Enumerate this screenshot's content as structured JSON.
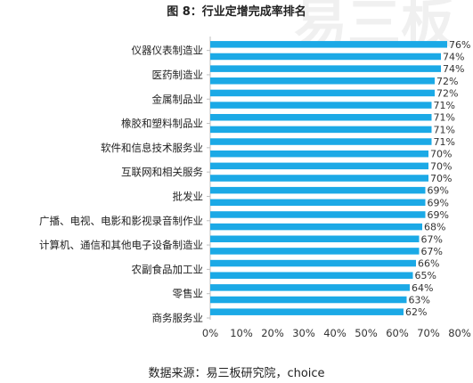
{
  "page": {
    "title": "图 8：行业定增完成率排名",
    "source": "数据来源：易三板研究院，choice"
  },
  "chart_data": {
    "type": "bar",
    "orientation": "horizontal",
    "title": "图 8：行业定增完成率排名",
    "y_tick_labels": [
      "仪器仪表制造业",
      "医药制造业",
      "金属制品业",
      "橡胶和塑料制品业",
      "软件和信息技术服务业",
      "互联网和相关服务",
      "批发业",
      "广播、电视、电影和影视录音制作业",
      "计算机、通信和其他电子设备制造业",
      "农副食品加工业",
      "零售业",
      "商务服务业"
    ],
    "values": [
      76,
      74,
      74,
      72,
      72,
      71,
      71,
      71,
      71,
      70,
      70,
      70,
      69,
      69,
      69,
      68,
      67,
      67,
      66,
      65,
      64,
      63,
      62
    ],
    "data_labels": [
      "76%",
      "74%",
      "74%",
      "72%",
      "72%",
      "71%",
      "71%",
      "71%",
      "71%",
      "70%",
      "70%",
      "70%",
      "69%",
      "69%",
      "69%",
      "68%",
      "67%",
      "67%",
      "66%",
      "65%",
      "64%",
      "63%",
      "62%"
    ],
    "xlim": [
      0,
      80
    ],
    "x_ticks": [
      "0%",
      "10%",
      "20%",
      "30%",
      "40%",
      "50%",
      "60%",
      "70%",
      "80%"
    ],
    "bar_color": "#1BA9E6",
    "grid": false,
    "legend": "none"
  },
  "watermark": {
    "text": "易三板"
  }
}
